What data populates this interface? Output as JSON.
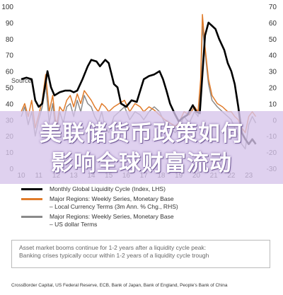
{
  "chart_data": {
    "type": "line",
    "source_label": "Source",
    "x_ticks": [
      "10",
      "11",
      "12",
      "13",
      "14",
      "15",
      "16",
      "17",
      "18",
      "19",
      "20",
      "21",
      "22",
      "23"
    ],
    "y_left_ticks": [
      "0",
      "10",
      "20",
      "30",
      "40",
      "50",
      "60",
      "70",
      "80",
      "90",
      "100"
    ],
    "y_right_ticks": [
      "-30",
      "-20",
      "-10",
      "0",
      "10",
      "20",
      "30",
      "40",
      "50",
      "60",
      "70"
    ],
    "y_left_range": [
      0,
      100
    ],
    "y_right_range": [
      -30,
      70
    ],
    "x_range": [
      2010,
      2023.5
    ],
    "series": [
      {
        "name": "Monthly Global Liquidity Cycle (Index, LHS)",
        "color": "#000000",
        "axis": "left",
        "points": [
          [
            2010.0,
            55
          ],
          [
            2010.3,
            56
          ],
          [
            2010.6,
            55
          ],
          [
            2010.8,
            42
          ],
          [
            2011.0,
            38
          ],
          [
            2011.2,
            40
          ],
          [
            2011.5,
            60
          ],
          [
            2011.7,
            50
          ],
          [
            2011.9,
            45
          ],
          [
            2012.2,
            47
          ],
          [
            2012.5,
            48
          ],
          [
            2012.8,
            48
          ],
          [
            2013.0,
            47
          ],
          [
            2013.2,
            48
          ],
          [
            2013.5,
            55
          ],
          [
            2013.8,
            63
          ],
          [
            2014.0,
            67
          ],
          [
            2014.3,
            66
          ],
          [
            2014.5,
            63
          ],
          [
            2014.8,
            67
          ],
          [
            2015.0,
            65
          ],
          [
            2015.3,
            52
          ],
          [
            2015.5,
            50
          ],
          [
            2015.7,
            40
          ],
          [
            2016.0,
            38
          ],
          [
            2016.3,
            42
          ],
          [
            2016.6,
            41
          ],
          [
            2016.8,
            48
          ],
          [
            2017.0,
            55
          ],
          [
            2017.3,
            57
          ],
          [
            2017.6,
            58
          ],
          [
            2017.9,
            60
          ],
          [
            2018.1,
            55
          ],
          [
            2018.3,
            48
          ],
          [
            2018.5,
            40
          ],
          [
            2018.8,
            33
          ],
          [
            2019.0,
            29
          ],
          [
            2019.2,
            31
          ],
          [
            2019.5,
            33
          ],
          [
            2019.8,
            39
          ],
          [
            2020.0,
            35
          ],
          [
            2020.2,
            34
          ],
          [
            2020.35,
            58
          ],
          [
            2020.5,
            82
          ],
          [
            2020.7,
            90
          ],
          [
            2020.9,
            88
          ],
          [
            2021.1,
            86
          ],
          [
            2021.3,
            80
          ],
          [
            2021.6,
            73
          ],
          [
            2021.8,
            65
          ],
          [
            2022.0,
            60
          ],
          [
            2022.2,
            52
          ],
          [
            2022.4,
            38
          ],
          [
            2022.6,
            22
          ],
          [
            2022.8,
            18
          ],
          [
            2023.0,
            15
          ],
          [
            2023.2,
            18
          ],
          [
            2023.4,
            15
          ]
        ]
      },
      {
        "name": "Major Regions: Weekly Series, Monetary Base – Local Currency Terms (3m Ann. % Chg., RHS)",
        "color": "#e07b2a",
        "axis": "right",
        "points": [
          [
            2010.0,
            5
          ],
          [
            2010.2,
            10
          ],
          [
            2010.4,
            2
          ],
          [
            2010.6,
            12
          ],
          [
            2010.8,
            -5
          ],
          [
            2011.0,
            3
          ],
          [
            2011.2,
            12
          ],
          [
            2011.4,
            28
          ],
          [
            2011.6,
            5
          ],
          [
            2011.8,
            15
          ],
          [
            2012.0,
            -5
          ],
          [
            2012.2,
            8
          ],
          [
            2012.4,
            5
          ],
          [
            2012.6,
            12
          ],
          [
            2012.8,
            15
          ],
          [
            2013.0,
            8
          ],
          [
            2013.2,
            16
          ],
          [
            2013.4,
            10
          ],
          [
            2013.6,
            18
          ],
          [
            2013.8,
            15
          ],
          [
            2014.0,
            12
          ],
          [
            2014.2,
            8
          ],
          [
            2014.4,
            5
          ],
          [
            2014.6,
            10
          ],
          [
            2014.8,
            8
          ],
          [
            2015.0,
            5
          ],
          [
            2015.3,
            8
          ],
          [
            2015.6,
            10
          ],
          [
            2015.9,
            12
          ],
          [
            2016.2,
            5
          ],
          [
            2016.5,
            10
          ],
          [
            2016.8,
            8
          ],
          [
            2017.0,
            5
          ],
          [
            2017.3,
            8
          ],
          [
            2017.6,
            6
          ],
          [
            2017.9,
            3
          ],
          [
            2018.2,
            0
          ],
          [
            2018.5,
            -2
          ],
          [
            2018.8,
            -4
          ],
          [
            2019.0,
            -2
          ],
          [
            2019.3,
            5
          ],
          [
            2019.6,
            3
          ],
          [
            2019.9,
            8
          ],
          [
            2020.1,
            5
          ],
          [
            2020.25,
            25
          ],
          [
            2020.35,
            65
          ],
          [
            2020.5,
            45
          ],
          [
            2020.7,
            25
          ],
          [
            2020.9,
            15
          ],
          [
            2021.2,
            10
          ],
          [
            2021.5,
            8
          ],
          [
            2021.8,
            5
          ],
          [
            2022.0,
            5
          ],
          [
            2022.2,
            2
          ],
          [
            2022.4,
            0
          ],
          [
            2022.6,
            -5
          ],
          [
            2022.8,
            -8
          ],
          [
            2023.0,
            2
          ],
          [
            2023.2,
            5
          ],
          [
            2023.4,
            2
          ]
        ]
      },
      {
        "name": "Major Regions: Weekly Series, Monetary Base – US dollar Terms",
        "color": "#8a8a8a",
        "axis": "right",
        "points": [
          [
            2010.0,
            2
          ],
          [
            2010.2,
            8
          ],
          [
            2010.4,
            -3
          ],
          [
            2010.6,
            5
          ],
          [
            2010.8,
            -10
          ],
          [
            2011.0,
            0
          ],
          [
            2011.2,
            8
          ],
          [
            2011.4,
            22
          ],
          [
            2011.6,
            -2
          ],
          [
            2011.8,
            10
          ],
          [
            2012.0,
            -10
          ],
          [
            2012.2,
            5
          ],
          [
            2012.4,
            -2
          ],
          [
            2012.6,
            8
          ],
          [
            2012.8,
            10
          ],
          [
            2013.0,
            2
          ],
          [
            2013.2,
            12
          ],
          [
            2013.4,
            5
          ],
          [
            2013.6,
            15
          ],
          [
            2013.8,
            10
          ],
          [
            2014.0,
            8
          ],
          [
            2014.2,
            2
          ],
          [
            2014.4,
            -2
          ],
          [
            2014.6,
            5
          ],
          [
            2014.8,
            -5
          ],
          [
            2015.0,
            -8
          ],
          [
            2015.3,
            2
          ],
          [
            2015.6,
            5
          ],
          [
            2015.9,
            8
          ],
          [
            2016.2,
            0
          ],
          [
            2016.5,
            5
          ],
          [
            2016.8,
            3
          ],
          [
            2017.0,
            0
          ],
          [
            2017.3,
            5
          ],
          [
            2017.6,
            8
          ],
          [
            2017.9,
            5
          ],
          [
            2018.2,
            -2
          ],
          [
            2018.5,
            -5
          ],
          [
            2018.8,
            -8
          ],
          [
            2019.0,
            -5
          ],
          [
            2019.3,
            2
          ],
          [
            2019.6,
            -2
          ],
          [
            2019.9,
            5
          ],
          [
            2020.1,
            2
          ],
          [
            2020.25,
            20
          ],
          [
            2020.35,
            58
          ],
          [
            2020.5,
            42
          ],
          [
            2020.7,
            22
          ],
          [
            2020.9,
            12
          ],
          [
            2021.2,
            8
          ],
          [
            2021.5,
            5
          ],
          [
            2021.8,
            2
          ],
          [
            2022.0,
            0
          ],
          [
            2022.2,
            -5
          ],
          [
            2022.4,
            -10
          ],
          [
            2022.6,
            -15
          ],
          [
            2022.8,
            -18
          ],
          [
            2023.0,
            -3
          ],
          [
            2023.2,
            2
          ],
          [
            2023.4,
            -2
          ]
        ]
      }
    ]
  },
  "overlay": {
    "line1": "美联储货币政策如何",
    "line2": "影响全球财富流动"
  },
  "legend": [
    {
      "color": "#000000",
      "lines": [
        "Monthly Global Liquidity Cycle (Index, LHS)"
      ]
    },
    {
      "color": "#e07b2a",
      "lines": [
        "Major Regions: Weekly Series, Monetary Base",
        "– Local Currency Terms (3m Ann. % Chg., RHS)"
      ]
    },
    {
      "color": "#8a8a8a",
      "lines": [
        "Major Regions: Weekly Series, Monetary Base",
        "– US dollar Terms"
      ]
    }
  ],
  "note": {
    "line1": "Asset market booms continue for 1-2 years after a liquidity cycle peak:",
    "line2": "Banking crises typically occur within 1-2 years of a liquidity cycle trough"
  },
  "footer": "CrossBorder Capital, US Federal Reserve, ECB, Bank of Japan, Bank of England, People's Bank of China"
}
